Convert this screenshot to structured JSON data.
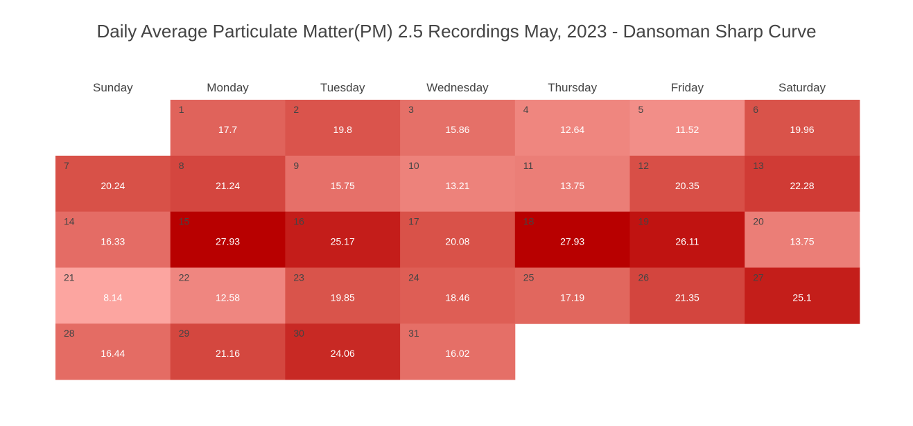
{
  "chart_data": {
    "type": "heatmap",
    "title": "Daily Average Particulate Matter(PM) 2.5 Recordings May, 2023 - Dansoman Sharp Curve",
    "weekdays": [
      "Sunday",
      "Monday",
      "Tuesday",
      "Wednesday",
      "Thursday",
      "Friday",
      "Saturday"
    ],
    "first_weekday_index": 1,
    "days": [
      1,
      2,
      3,
      4,
      5,
      6,
      7,
      8,
      9,
      10,
      11,
      12,
      13,
      14,
      15,
      16,
      17,
      18,
      19,
      20,
      21,
      22,
      23,
      24,
      25,
      26,
      27,
      28,
      29,
      30,
      31
    ],
    "values": [
      17.7,
      19.8,
      15.86,
      12.64,
      11.52,
      19.96,
      20.24,
      21.24,
      15.75,
      13.21,
      13.75,
      20.35,
      22.28,
      16.33,
      27.93,
      25.17,
      20.08,
      27.93,
      26.11,
      13.75,
      8.14,
      12.58,
      19.85,
      18.46,
      17.19,
      21.35,
      25.1,
      16.44,
      21.16,
      24.06,
      16.02
    ],
    "value_range": [
      8.14,
      27.93
    ],
    "colorscale": {
      "low": "#fca5a0",
      "mid": "#d9534a",
      "high": "#b80000"
    }
  }
}
